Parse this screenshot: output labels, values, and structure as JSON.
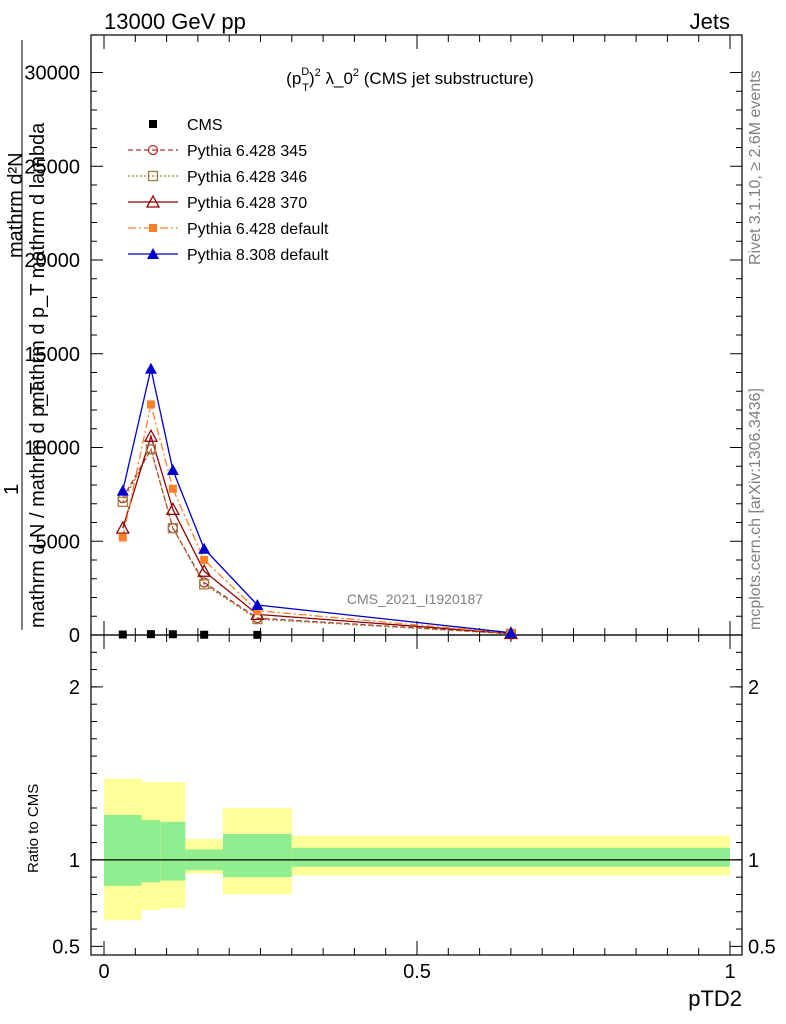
{
  "header": {
    "left": "13000 GeV pp",
    "right": "Jets"
  },
  "plot_title": {
    "base": "(p",
    "sub": "T",
    "sup": "D",
    "rest": ")",
    "exp": "2",
    "lambda": " λ_0",
    "exp2": "2",
    "tail": " (CMS jet substructure)"
  },
  "side_labels": {
    "rivet": "Rivet 3.1.10, ≥ 2.6M events",
    "mcplots": "mcplots.cern.ch [arXiv:1306.3436]"
  },
  "watermark": "CMS_2021_I1920187",
  "yaxis_main": {
    "line_top": "mathrm d²N",
    "line_top2": "mathrm d p_T mathrm d lambda",
    "line_mid": "1",
    "line_bottom": "mathrm d N / mathrm d p_T"
  },
  "ratio_ylabel": "Ratio to CMS",
  "xlabel": "pTD2",
  "colors": {
    "cms": "#000000",
    "p345": "#b03030",
    "p346": "#a08040",
    "p370": "#8b0000",
    "p6def": "#ff7f2a",
    "p8def": "#0000cc",
    "band_outer": "#ffff99",
    "band_inner": "#90ee90"
  },
  "chart_data": {
    "type": "line",
    "main": {
      "xlim": [
        0,
        1
      ],
      "ylim": [
        0,
        32000
      ],
      "yticks": [
        0,
        5000,
        10000,
        15000,
        20000,
        25000,
        30000
      ],
      "ytick_labels": [
        "0",
        "5000",
        "10000",
        "15000",
        "20000",
        "25000",
        "30000"
      ],
      "x": [
        0.03,
        0.075,
        0.11,
        0.16,
        0.245,
        0.65
      ],
      "series": [
        {
          "key": "cms",
          "name": "CMS",
          "values": [
            25,
            45,
            40,
            15,
            8,
            1
          ]
        },
        {
          "key": "p345",
          "name": "Pythia 6.428 345",
          "values": [
            7300,
            9900,
            5700,
            2800,
            900,
            70
          ]
        },
        {
          "key": "p346",
          "name": "Pythia 6.428 346",
          "values": [
            7100,
            9900,
            5700,
            2700,
            850,
            60
          ]
        },
        {
          "key": "p370",
          "name": "Pythia 6.428 370",
          "values": [
            5700,
            10600,
            6700,
            3400,
            1100,
            80
          ]
        },
        {
          "key": "p6def",
          "name": "Pythia 6.428 default",
          "values": [
            5200,
            12300,
            7800,
            4000,
            1300,
            90
          ]
        },
        {
          "key": "p8def",
          "name": "Pythia 8.308 default",
          "values": [
            7700,
            14200,
            8800,
            4600,
            1600,
            120
          ]
        }
      ]
    },
    "ratio": {
      "ylim": [
        0.45,
        2.3
      ],
      "yticks": [
        0.5,
        1,
        2
      ],
      "ytick_labels": [
        "0.5",
        "1",
        "2"
      ],
      "xticks": [
        0,
        0.5,
        1
      ],
      "xtick_labels": [
        "0",
        "0.5",
        "1"
      ],
      "bins": [
        {
          "lo": 0.0,
          "hi": 0.06,
          "inner": [
            0.85,
            1.26
          ],
          "outer": [
            0.65,
            1.47
          ]
        },
        {
          "lo": 0.06,
          "hi": 0.09,
          "inner": [
            0.87,
            1.23
          ],
          "outer": [
            0.71,
            1.45
          ]
        },
        {
          "lo": 0.09,
          "hi": 0.13,
          "inner": [
            0.88,
            1.22
          ],
          "outer": [
            0.72,
            1.45
          ]
        },
        {
          "lo": 0.13,
          "hi": 0.19,
          "inner": [
            0.94,
            1.06
          ],
          "outer": [
            0.92,
            1.12
          ]
        },
        {
          "lo": 0.19,
          "hi": 0.3,
          "inner": [
            0.9,
            1.15
          ],
          "outer": [
            0.8,
            1.3
          ]
        },
        {
          "lo": 0.3,
          "hi": 1.0,
          "inner": [
            0.96,
            1.07
          ],
          "outer": [
            0.91,
            1.14
          ]
        }
      ]
    }
  }
}
